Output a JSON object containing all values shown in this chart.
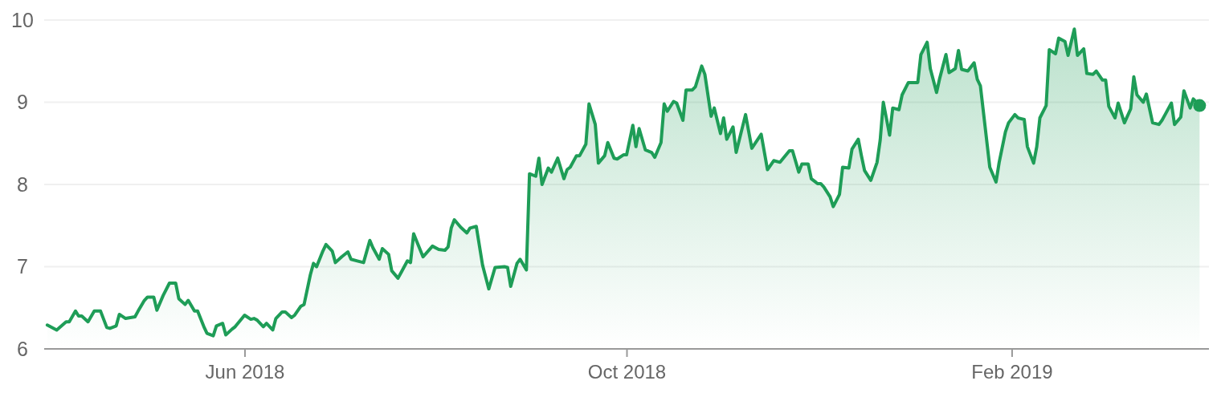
{
  "chart_data": {
    "type": "area",
    "x": [
      "2018-03-30",
      "2018-04-02",
      "2018-04-05",
      "2018-04-06",
      "2018-04-08",
      "2018-04-09",
      "2018-04-10",
      "2018-04-12",
      "2018-04-14",
      "2018-04-16",
      "2018-04-18",
      "2018-04-19",
      "2018-04-21",
      "2018-04-22",
      "2018-04-24",
      "2018-04-27",
      "2018-04-28",
      "2018-04-30",
      "2018-05-01",
      "2018-05-03",
      "2018-05-04",
      "2018-05-06",
      "2018-05-08",
      "2018-05-10",
      "2018-05-11",
      "2018-05-13",
      "2018-05-14",
      "2018-05-16",
      "2018-05-17",
      "2018-05-19",
      "2018-05-20",
      "2018-05-22",
      "2018-05-23",
      "2018-05-25",
      "2018-05-26",
      "2018-05-28",
      "2018-05-29",
      "2018-06-01",
      "2018-06-03",
      "2018-06-04",
      "2018-06-05",
      "2018-06-07",
      "2018-06-08",
      "2018-06-10",
      "2018-06-11",
      "2018-06-13",
      "2018-06-14",
      "2018-06-16",
      "2018-06-17",
      "2018-06-19",
      "2018-06-20",
      "2018-06-22",
      "2018-06-23",
      "2018-06-24",
      "2018-06-26",
      "2018-06-27",
      "2018-06-29",
      "2018-06-30",
      "2018-07-02",
      "2018-07-04",
      "2018-07-05",
      "2018-07-07",
      "2018-07-09",
      "2018-07-11",
      "2018-07-12",
      "2018-07-14",
      "2018-07-15",
      "2018-07-17",
      "2018-07-18",
      "2018-07-20",
      "2018-07-21",
      "2018-07-23",
      "2018-07-24",
      "2018-07-25",
      "2018-07-28",
      "2018-07-31",
      "2018-08-02",
      "2018-08-04",
      "2018-08-05",
      "2018-08-06",
      "2018-08-07",
      "2018-08-09",
      "2018-08-11",
      "2018-08-12",
      "2018-08-14",
      "2018-08-16",
      "2018-08-18",
      "2018-08-20",
      "2018-08-23",
      "2018-08-24",
      "2018-08-25",
      "2018-08-27",
      "2018-08-28",
      "2018-08-30",
      "2018-08-31",
      "2018-09-02",
      "2018-09-03",
      "2018-09-04",
      "2018-09-06",
      "2018-09-07",
      "2018-09-09",
      "2018-09-11",
      "2018-09-12",
      "2018-09-13",
      "2018-09-15",
      "2018-09-16",
      "2018-09-18",
      "2018-09-19",
      "2018-09-21",
      "2018-09-22",
      "2018-09-24",
      "2018-09-25",
      "2018-09-27",
      "2018-09-28",
      "2018-09-30",
      "2018-10-01",
      "2018-10-03",
      "2018-10-04",
      "2018-10-05",
      "2018-10-07",
      "2018-10-09",
      "2018-10-10",
      "2018-10-12",
      "2018-10-13",
      "2018-10-14",
      "2018-10-16",
      "2018-10-17",
      "2018-10-19",
      "2018-10-20",
      "2018-10-22",
      "2018-10-23",
      "2018-10-25",
      "2018-10-26",
      "2018-10-28",
      "2018-10-29",
      "2018-10-31",
      "2018-11-01",
      "2018-11-02",
      "2018-11-04",
      "2018-11-05",
      "2018-11-08",
      "2018-11-10",
      "2018-11-13",
      "2018-11-15",
      "2018-11-17",
      "2018-11-19",
      "2018-11-22",
      "2018-11-23",
      "2018-11-25",
      "2018-11-26",
      "2018-11-28",
      "2018-11-29",
      "2018-12-01",
      "2018-12-02",
      "2018-12-03",
      "2018-12-05",
      "2018-12-06",
      "2018-12-08",
      "2018-12-09",
      "2018-12-11",
      "2018-12-12",
      "2018-12-14",
      "2018-12-15",
      "2018-12-16",
      "2018-12-18",
      "2018-12-20",
      "2018-12-21",
      "2018-12-22",
      "2018-12-24",
      "2018-12-25",
      "2018-12-27",
      "2018-12-28",
      "2018-12-30",
      "2019-01-02",
      "2019-01-03",
      "2019-01-05",
      "2019-01-06",
      "2019-01-08",
      "2019-01-09",
      "2019-01-11",
      "2019-01-12",
      "2019-01-14",
      "2019-01-15",
      "2019-01-16",
      "2019-01-18",
      "2019-01-20",
      "2019-01-21",
      "2019-01-22",
      "2019-01-25",
      "2019-01-27",
      "2019-01-28",
      "2019-01-30",
      "2019-01-31",
      "2019-02-02",
      "2019-02-03",
      "2019-02-05",
      "2019-02-06",
      "2019-02-08",
      "2019-02-09",
      "2019-02-10",
      "2019-02-12",
      "2019-02-13",
      "2019-02-15",
      "2019-02-16",
      "2019-02-18",
      "2019-02-19",
      "2019-02-21",
      "2019-02-22",
      "2019-02-24",
      "2019-02-25",
      "2019-02-27",
      "2019-02-28",
      "2019-03-02",
      "2019-03-03",
      "2019-03-04",
      "2019-03-06",
      "2019-03-07",
      "2019-03-09",
      "2019-03-11",
      "2019-03-12",
      "2019-03-13",
      "2019-03-15",
      "2019-03-16",
      "2019-03-18",
      "2019-03-20",
      "2019-03-21",
      "2019-03-22",
      "2019-03-24",
      "2019-03-25",
      "2019-03-27",
      "2019-03-28",
      "2019-03-30",
      "2019-03-31",
      "2019-04-02"
    ],
    "series": [
      {
        "color": "#1e9d57",
        "values": [
          6.29,
          6.23,
          6.33,
          6.33,
          6.46,
          6.4,
          6.4,
          6.33,
          6.46,
          6.46,
          6.26,
          6.25,
          6.28,
          6.42,
          6.37,
          6.39,
          6.46,
          6.59,
          6.63,
          6.63,
          6.47,
          6.65,
          6.8,
          6.8,
          6.61,
          6.54,
          6.59,
          6.46,
          6.46,
          6.27,
          6.19,
          6.16,
          6.28,
          6.31,
          6.17,
          6.24,
          6.27,
          6.41,
          6.36,
          6.37,
          6.35,
          6.27,
          6.31,
          6.23,
          6.37,
          6.45,
          6.45,
          6.38,
          6.41,
          6.52,
          6.54,
          6.9,
          7.04,
          7.0,
          7.19,
          7.27,
          7.19,
          7.05,
          7.12,
          7.18,
          7.09,
          7.07,
          7.05,
          7.32,
          7.23,
          7.09,
          7.22,
          7.15,
          6.95,
          6.86,
          6.93,
          7.07,
          7.05,
          7.4,
          7.12,
          7.25,
          7.21,
          7.2,
          7.24,
          7.47,
          7.57,
          7.48,
          7.41,
          7.47,
          7.49,
          7.02,
          6.73,
          6.99,
          7.0,
          6.99,
          6.76,
          7.04,
          7.09,
          6.96,
          8.13,
          8.1,
          8.32,
          8.0,
          8.2,
          8.15,
          8.32,
          8.07,
          8.18,
          8.21,
          8.35,
          8.35,
          8.49,
          8.98,
          8.73,
          8.26,
          8.35,
          8.51,
          8.32,
          8.31,
          8.36,
          8.36,
          8.72,
          8.46,
          8.68,
          8.42,
          8.39,
          8.33,
          8.51,
          8.98,
          8.89,
          9.01,
          8.99,
          8.78,
          9.15,
          9.15,
          9.19,
          9.44,
          9.34,
          8.83,
          8.93,
          8.62,
          8.81,
          8.55,
          8.7,
          8.39,
          8.85,
          8.44,
          8.61,
          8.18,
          8.29,
          8.27,
          8.41,
          8.41,
          8.15,
          8.25,
          8.25,
          8.07,
          8.01,
          8.01,
          7.97,
          7.85,
          7.73,
          7.88,
          8.21,
          8.2,
          8.43,
          8.55,
          8.35,
          8.17,
          8.05,
          8.27,
          8.54,
          9.0,
          8.6,
          8.93,
          8.91,
          9.09,
          9.24,
          9.24,
          9.58,
          9.73,
          9.41,
          9.12,
          9.29,
          9.58,
          9.36,
          9.41,
          9.63,
          9.4,
          9.38,
          9.48,
          9.28,
          9.2,
          8.21,
          8.03,
          8.27,
          8.64,
          8.75,
          8.85,
          8.81,
          8.79,
          8.46,
          8.26,
          8.46,
          8.81,
          8.96,
          9.64,
          9.59,
          9.78,
          9.74,
          9.57,
          9.89,
          9.57,
          9.65,
          9.35,
          9.34,
          9.38,
          9.27,
          9.27,
          8.95,
          8.81,
          8.99,
          8.75,
          8.92,
          9.31,
          9.09,
          9.0,
          9.1,
          8.75,
          8.73,
          8.78,
          8.85,
          8.99,
          8.73,
          8.82,
          9.14,
          8.93,
          9.04,
          8.96
        ]
      }
    ],
    "xlim": [
      "2018-03-29",
      "2019-04-05"
    ],
    "xticks": [
      {
        "value": "2018-06-01",
        "label": "Jun 2018"
      },
      {
        "value": "2018-10-01",
        "label": "Oct 2018"
      },
      {
        "value": "2019-02-01",
        "label": "Feb 2019"
      }
    ],
    "ylim": [
      6,
      10
    ],
    "yticks": [
      6,
      7,
      8,
      9,
      10
    ],
    "grid": "y"
  }
}
